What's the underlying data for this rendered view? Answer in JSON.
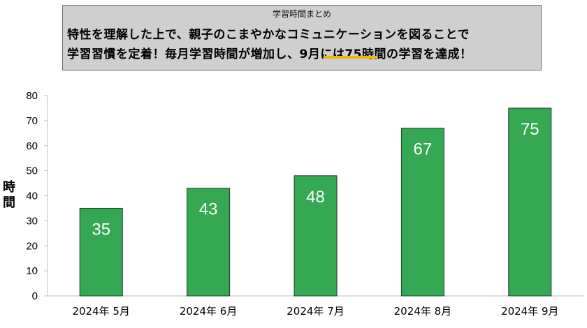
{
  "header": {
    "small_title": "学習時間まとめ",
    "line1": "特性を理解した上で、親子のこまやかなコミュニケーションを図ることで",
    "line2_prefix": "学習習慣を定着！毎月学習時間が増加し、9月には",
    "line2_highlight": "75時間",
    "line2_suffix": "の学習を達成！",
    "highlight_color": "#f2b705"
  },
  "chart_data": {
    "type": "bar",
    "categories": [
      "2024年 5月",
      "2024年 6月",
      "2024年 7月",
      "2024年 8月",
      "2024年 9月"
    ],
    "values": [
      35,
      43,
      48,
      67,
      75
    ],
    "title": "",
    "xlabel": "",
    "ylabel": "時間",
    "ylim": [
      0,
      80
    ],
    "yticks": [
      0,
      10,
      20,
      30,
      40,
      50,
      60,
      70,
      80
    ],
    "grid": false,
    "data_labels": true,
    "bar_color": "#34a853",
    "bar_edge_color": "#1f3d24"
  }
}
